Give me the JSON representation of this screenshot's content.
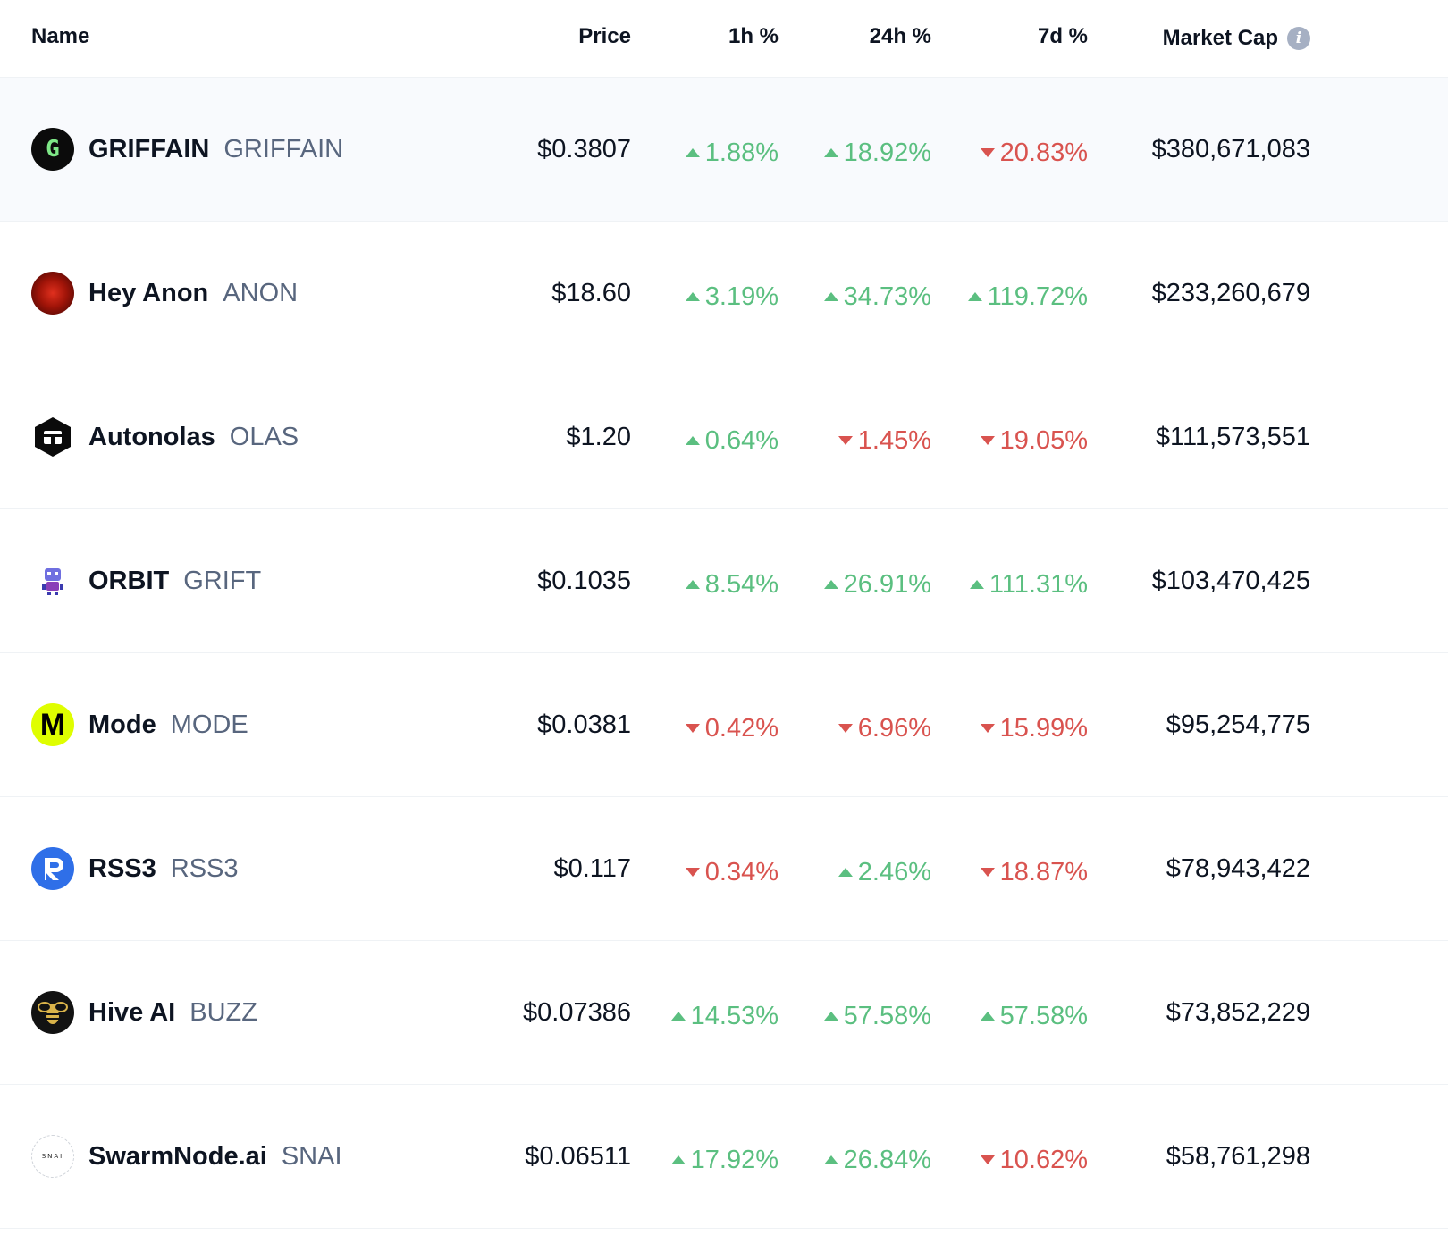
{
  "header": {
    "name": "Name",
    "price": "Price",
    "h1": "1h %",
    "h24": "24h %",
    "d7": "7d %",
    "market_cap": "Market Cap",
    "info_glyph": "i"
  },
  "rows": [
    {
      "name": "GRIFFAIN",
      "symbol": "GRIFFAIN",
      "logo": "griffain-logo",
      "logo_text": "G",
      "price": "$0.3807",
      "h1": {
        "dir": "up",
        "value": "1.88%"
      },
      "h24": {
        "dir": "up",
        "value": "18.92%"
      },
      "d7": {
        "dir": "down",
        "value": "20.83%"
      },
      "market_cap": "$380,671,083",
      "highlight": true
    },
    {
      "name": "Hey Anon",
      "symbol": "ANON",
      "logo": "hey-anon-logo",
      "logo_text": "",
      "price": "$18.60",
      "h1": {
        "dir": "up",
        "value": "3.19%"
      },
      "h24": {
        "dir": "up",
        "value": "34.73%"
      },
      "d7": {
        "dir": "up",
        "value": "119.72%"
      },
      "market_cap": "$233,260,679"
    },
    {
      "name": "Autonolas",
      "symbol": "OLAS",
      "logo": "autonolas-logo",
      "logo_text": "",
      "price": "$1.20",
      "h1": {
        "dir": "up",
        "value": "0.64%"
      },
      "h24": {
        "dir": "down",
        "value": "1.45%"
      },
      "d7": {
        "dir": "down",
        "value": "19.05%"
      },
      "market_cap": "$111,573,551"
    },
    {
      "name": "ORBIT",
      "symbol": "GRIFT",
      "logo": "orbit-logo",
      "logo_text": "",
      "price": "$0.1035",
      "h1": {
        "dir": "up",
        "value": "8.54%"
      },
      "h24": {
        "dir": "up",
        "value": "26.91%"
      },
      "d7": {
        "dir": "up",
        "value": "111.31%"
      },
      "market_cap": "$103,470,425"
    },
    {
      "name": "Mode",
      "symbol": "MODE",
      "logo": "mode-logo",
      "logo_text": "M",
      "price": "$0.0381",
      "h1": {
        "dir": "down",
        "value": "0.42%"
      },
      "h24": {
        "dir": "down",
        "value": "6.96%"
      },
      "d7": {
        "dir": "down",
        "value": "15.99%"
      },
      "market_cap": "$95,254,775"
    },
    {
      "name": "RSS3",
      "symbol": "RSS3",
      "logo": "rss3-logo",
      "logo_text": "",
      "price": "$0.117",
      "h1": {
        "dir": "down",
        "value": "0.34%"
      },
      "h24": {
        "dir": "up",
        "value": "2.46%"
      },
      "d7": {
        "dir": "down",
        "value": "18.87%"
      },
      "market_cap": "$78,943,422"
    },
    {
      "name": "Hive AI",
      "symbol": "BUZZ",
      "logo": "hive-ai-logo",
      "logo_text": "",
      "price": "$0.07386",
      "h1": {
        "dir": "up",
        "value": "14.53%"
      },
      "h24": {
        "dir": "up",
        "value": "57.58%"
      },
      "d7": {
        "dir": "up",
        "value": "57.58%"
      },
      "market_cap": "$73,852,229"
    },
    {
      "name": "SwarmNode.ai",
      "symbol": "SNAI",
      "logo": "swarmnode-logo",
      "logo_text": "SNAI",
      "price": "$0.06511",
      "h1": {
        "dir": "up",
        "value": "17.92%"
      },
      "h24": {
        "dir": "up",
        "value": "26.84%"
      },
      "d7": {
        "dir": "down",
        "value": "10.62%"
      },
      "market_cap": "$58,761,298"
    }
  ],
  "colors": {
    "up": "#5bbf80",
    "down": "#d9534f",
    "text": "#0d1421",
    "muted": "#58667e",
    "highlight": "#f8fafd"
  }
}
